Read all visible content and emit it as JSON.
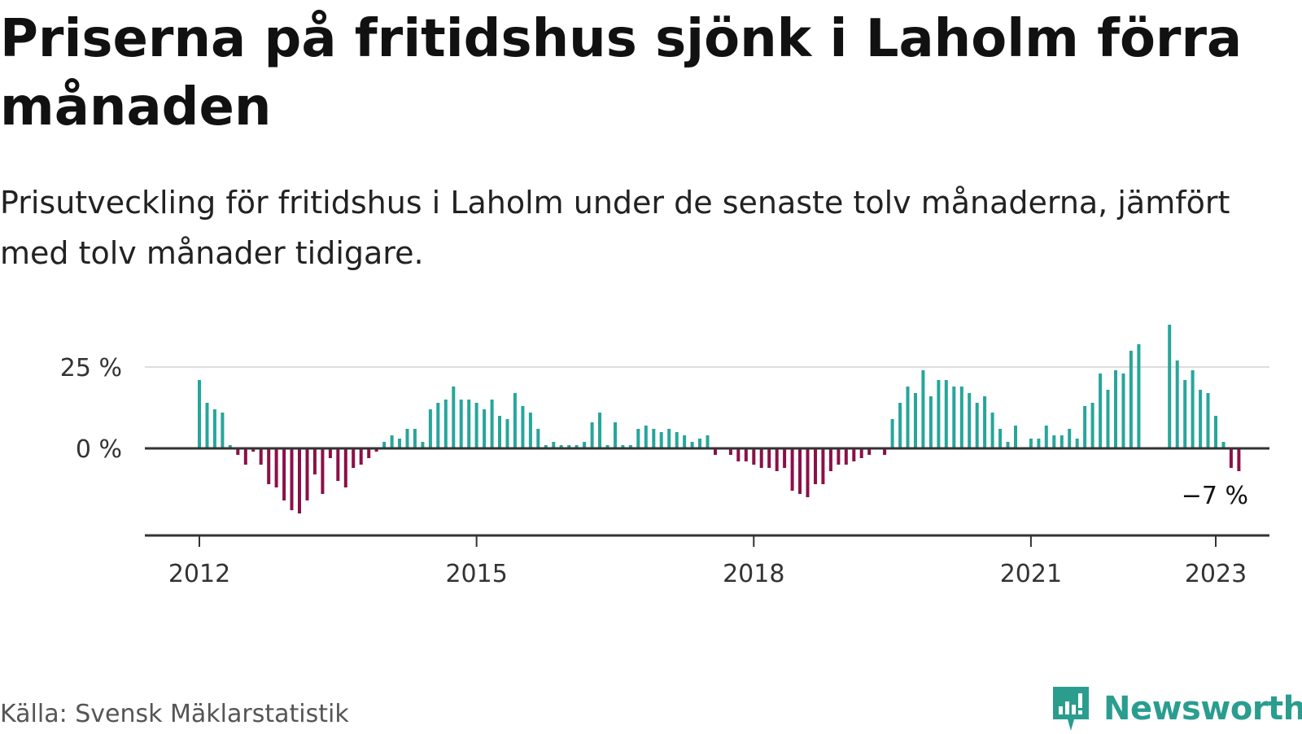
{
  "title": "Priserna på fritidshus sjönk i Laholm förra månaden",
  "subtitle": "Prisutveckling för fritidshus i Laholm under de senaste tolv månaderna, jämfört med tolv månader tidigare.",
  "source": "Källa: Svensk Mäklarstatistik",
  "brand": "Newsworthy",
  "colors": {
    "positive": "#26a69a",
    "negative": "#8b1048",
    "zero_line": "#333333",
    "grid": "#dddddd",
    "brand": "#2a9d8f"
  },
  "chart_data": {
    "type": "bar",
    "x_start": "2012-01",
    "x_end": "2023-01",
    "x_ticks": [
      "2012",
      "2015",
      "2018",
      "2021",
      "2023"
    ],
    "y_ticks": [
      {
        "value": 0,
        "label": "0 %"
      },
      {
        "value": 25,
        "label": "25 %"
      }
    ],
    "ylim": [
      -23,
      40
    ],
    "last_label": "−7 %",
    "values": [
      21,
      14,
      12,
      11,
      1,
      -2,
      -5,
      -1,
      -5,
      -11,
      -12,
      -16,
      -19,
      -20,
      -16,
      -8,
      -14,
      -3,
      -10,
      -12,
      -6,
      -5,
      -3,
      -1,
      2,
      4,
      3,
      6,
      6,
      2,
      12,
      14,
      15,
      19,
      15,
      15,
      14,
      12,
      15,
      10,
      9,
      17,
      13,
      11,
      6,
      1,
      2,
      1,
      1,
      1,
      2,
      8,
      11,
      1,
      8,
      1,
      1,
      6,
      7,
      6,
      5,
      6,
      5,
      4,
      2,
      3,
      4,
      -2,
      0,
      -2,
      -4,
      -4,
      -5,
      -6,
      -6,
      -7,
      -6,
      -13,
      -14,
      -15,
      -11,
      -11,
      -7,
      -5,
      -5,
      -4,
      -3,
      -2,
      0,
      -2,
      9,
      14,
      19,
      17,
      24,
      16,
      21,
      21,
      19,
      19,
      17,
      14,
      16,
      11,
      6,
      2,
      7,
      0,
      3,
      3,
      7,
      4,
      4,
      6,
      3,
      13,
      14,
      23,
      18,
      24,
      23,
      30,
      32,
      0,
      0,
      0,
      38,
      27,
      21,
      24,
      18,
      17,
      10,
      2,
      -6,
      -7
    ]
  }
}
